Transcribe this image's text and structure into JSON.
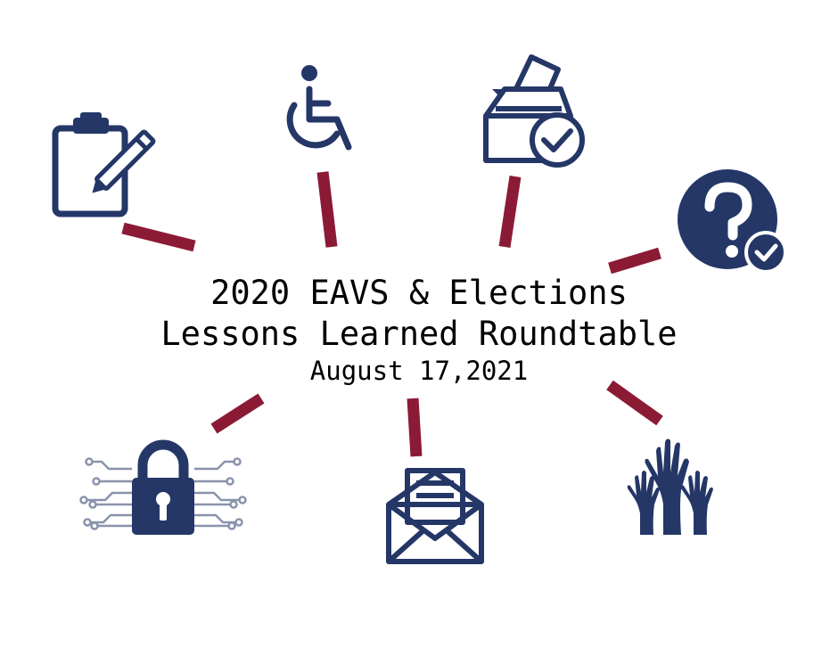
{
  "title": {
    "line1": "2020 EAVS & Elections",
    "line2": "Lessons Learned Roundtable",
    "date": "August 17,2021"
  },
  "colors": {
    "navy": "#243767",
    "connector": "#8b1a35",
    "background": "#ffffff"
  },
  "icons": [
    "clipboard-pencil-icon",
    "wheelchair-icon",
    "ballot-box-check-icon",
    "question-check-icon",
    "circuit-lock-icon",
    "open-envelope-icon",
    "raised-hands-icon"
  ]
}
